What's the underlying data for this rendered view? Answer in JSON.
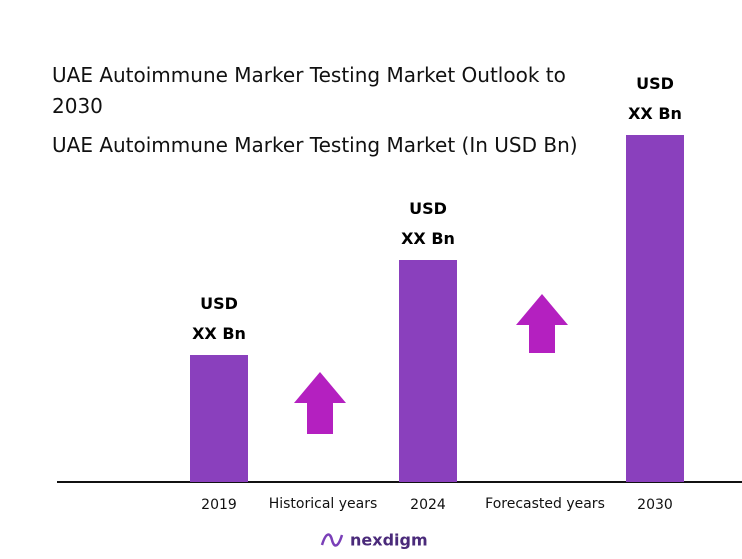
{
  "chart_data": {
    "type": "bar",
    "title": "UAE Autoimmune Marker Testing Market Outlook to 2030",
    "subtitle": "UAE Autoimmune Marker Testing Market (In USD Bn)",
    "categories": [
      "2019",
      "2024",
      "2030"
    ],
    "values": [
      127,
      222,
      347
    ],
    "value_labels": [
      "USD\nXX Bn",
      "USD\nXX Bn",
      "USD\nXX Bn"
    ],
    "color": "#8a40bd",
    "ylim": [
      0,
      350
    ],
    "annotations": [
      "Historical years",
      "Forecasted years"
    ],
    "logo": "nexdigm"
  }
}
